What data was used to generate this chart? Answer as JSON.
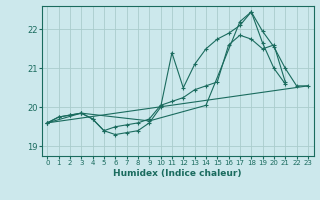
{
  "xlabel": "Humidex (Indice chaleur)",
  "bg_color": "#cce8ec",
  "grid_color": "#aacccc",
  "line_color": "#1a6b5e",
  "xlim": [
    -0.5,
    23.5
  ],
  "ylim": [
    18.75,
    22.6
  ],
  "yticks": [
    19,
    20,
    21,
    22
  ],
  "xticks": [
    0,
    1,
    2,
    3,
    4,
    5,
    6,
    7,
    8,
    9,
    10,
    11,
    12,
    13,
    14,
    15,
    16,
    17,
    18,
    19,
    20,
    21,
    22,
    23
  ],
  "line1_x": [
    0,
    1,
    2,
    3,
    4,
    5,
    6,
    7,
    8,
    9,
    10,
    11,
    12,
    13,
    14,
    15,
    16,
    17,
    18,
    19,
    20,
    21
  ],
  "line1_y": [
    19.6,
    19.75,
    19.8,
    19.85,
    19.7,
    19.4,
    19.3,
    19.35,
    19.4,
    19.6,
    20.0,
    21.4,
    20.5,
    21.1,
    21.5,
    21.75,
    21.9,
    22.1,
    22.45,
    21.65,
    21.0,
    20.6
  ],
  "line2_x": [
    0,
    1,
    2,
    3,
    4,
    5,
    6,
    7,
    8,
    9,
    10,
    11,
    12,
    13,
    14,
    15,
    16,
    17,
    18,
    19,
    20,
    21
  ],
  "line2_y": [
    19.6,
    19.75,
    19.8,
    19.85,
    19.7,
    19.4,
    19.5,
    19.55,
    19.6,
    19.7,
    20.05,
    20.15,
    20.25,
    20.45,
    20.55,
    20.65,
    21.6,
    21.85,
    21.75,
    21.5,
    21.6,
    20.65
  ],
  "line3_x": [
    0,
    3,
    9,
    14,
    17,
    18,
    19,
    20,
    21,
    22,
    23
  ],
  "line3_y": [
    19.6,
    19.85,
    19.65,
    20.05,
    22.2,
    22.45,
    21.95,
    21.55,
    21.0,
    20.55,
    20.55
  ],
  "line4_x": [
    0,
    23
  ],
  "line4_y": [
    19.6,
    20.55
  ]
}
